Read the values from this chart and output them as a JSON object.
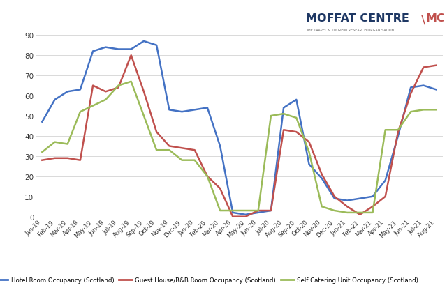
{
  "labels": [
    "Jan-19",
    "Feb-19",
    "Mar-19",
    "Apr-19",
    "May-19",
    "Jun-19",
    "Jul-19",
    "Aug-19",
    "Sep-19",
    "Oct-19",
    "Nov-19",
    "Dec-19",
    "Jan-20",
    "Feb-20",
    "Mar-20",
    "Apr-20",
    "May-20",
    "Jun-20",
    "Jul-20",
    "Aug-20",
    "Sep-20",
    "Oct-20",
    "Nov-20",
    "Dec-20",
    "Jan-21",
    "Feb-21",
    "Mar-21",
    "Apr-21",
    "May-21",
    "Jun-21",
    "Jul-21",
    "Aug-21"
  ],
  "hotel": [
    47,
    58,
    62,
    63,
    82,
    84,
    83,
    83,
    87,
    85,
    53,
    52,
    53,
    54,
    35,
    2,
    1,
    2,
    3,
    54,
    58,
    26,
    19,
    9,
    8,
    9,
    10,
    18,
    40,
    64,
    65,
    63
  ],
  "guesthouse": [
    28,
    29,
    29,
    28,
    65,
    62,
    64,
    80,
    62,
    42,
    35,
    34,
    33,
    20,
    14,
    0,
    0,
    3,
    3,
    43,
    42,
    37,
    21,
    10,
    5,
    1,
    5,
    10,
    42,
    61,
    74,
    75
  ],
  "selfcatering": [
    32,
    37,
    36,
    52,
    55,
    58,
    65,
    67,
    50,
    33,
    33,
    28,
    28,
    20,
    3,
    3,
    3,
    3,
    50,
    51,
    49,
    32,
    5,
    3,
    2,
    2,
    2,
    43,
    43,
    52,
    53,
    53
  ],
  "hotel_color": "#4472C4",
  "guesthouse_color": "#C0504D",
  "selfcatering_color": "#9BBB59",
  "bg_color": "#FFFFFF",
  "grid_color": "#D9D9D9",
  "ylim": [
    0,
    90
  ],
  "yticks": [
    0,
    10,
    20,
    30,
    40,
    50,
    60,
    70,
    80,
    90
  ],
  "legend_hotel": "Hotel Room Occupancy (Scotland)",
  "legend_guesthouse": "Guest House/R&B Room Occupancy (Scotland)",
  "legend_selfcatering": "Self Catering Unit Occupancy (Scotland)",
  "logo_main": "MOFFAT CENTRE",
  "logo_sub": "THE TRAVEL & TOURISM RESEARCH ORGANISATION",
  "logo_mc": "MC",
  "logo_main_color": "#1F3864",
  "logo_mc_color": "#C0504D"
}
